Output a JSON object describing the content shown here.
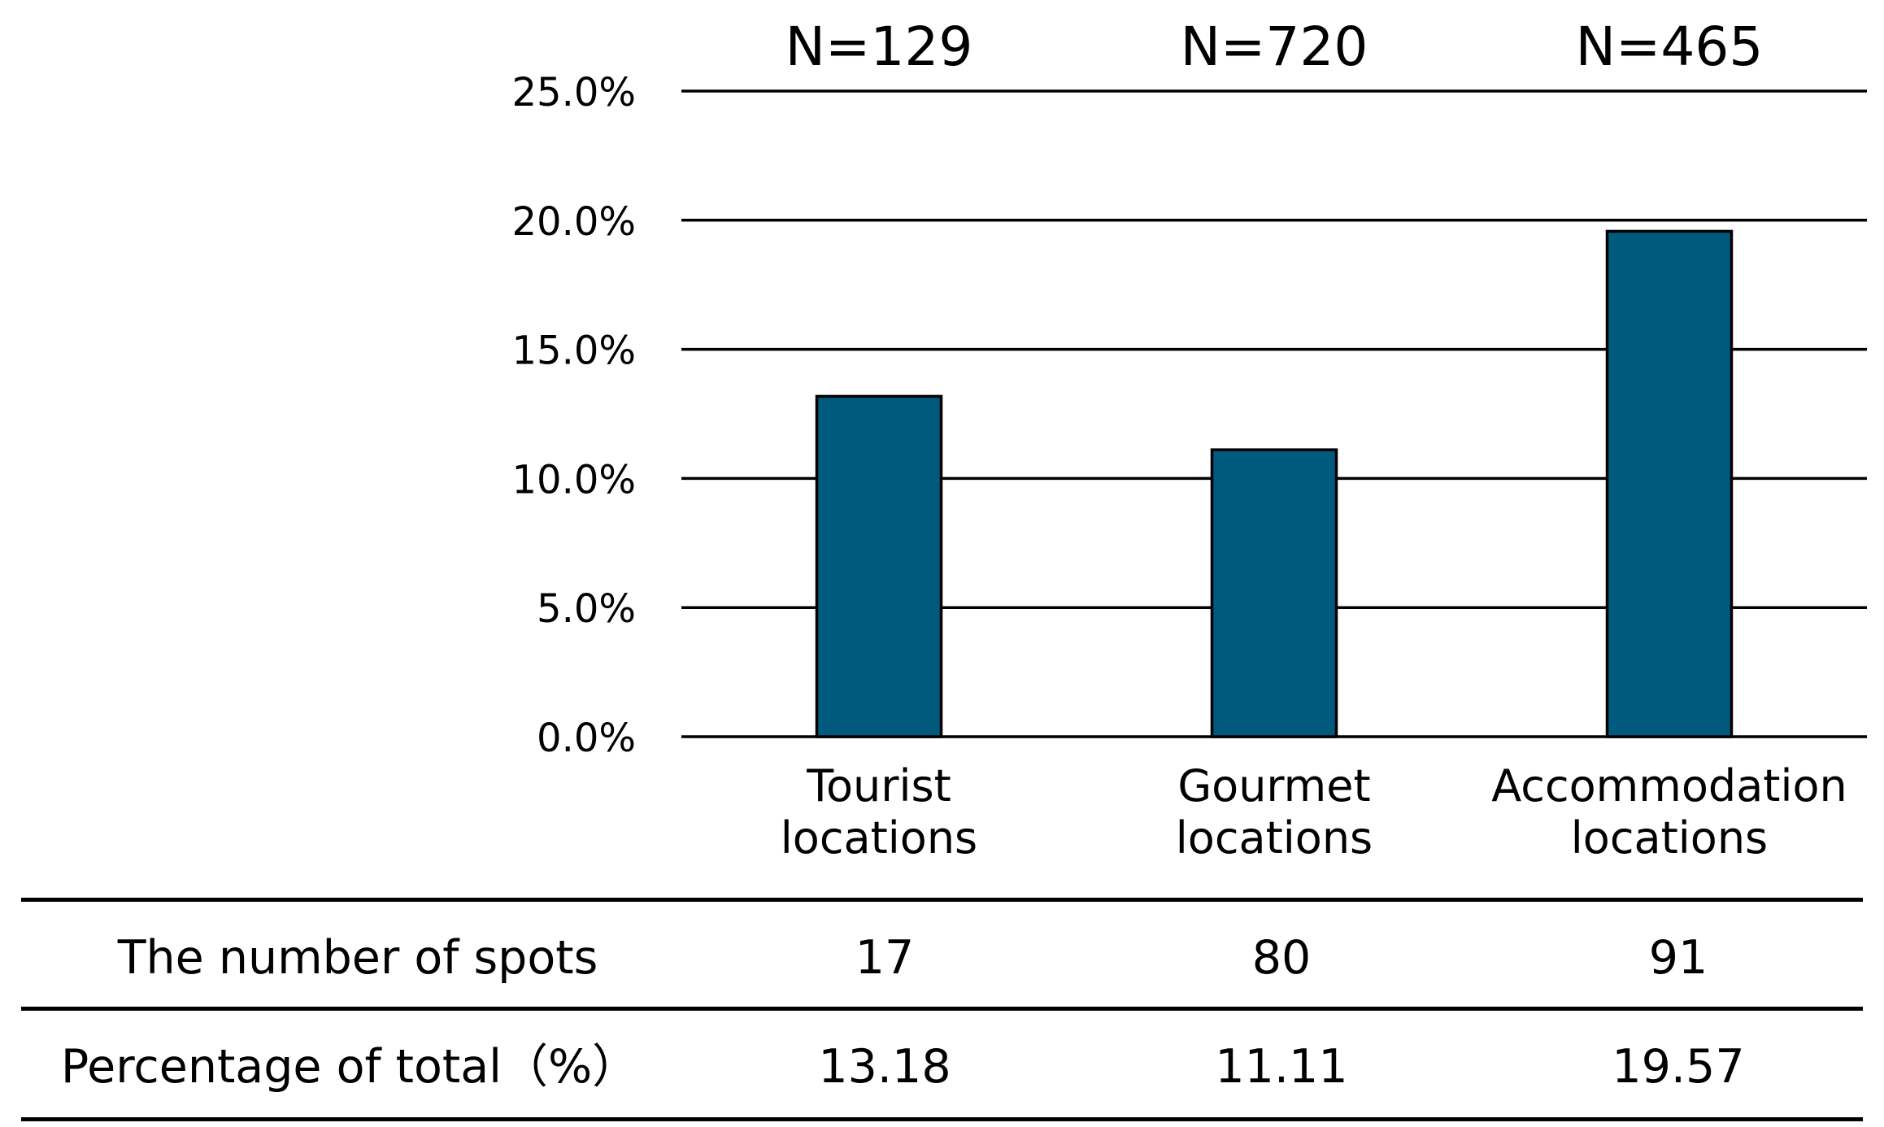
{
  "chart_data": {
    "type": "bar",
    "categories": [
      "Tourist\nlocations",
      "Gourmet\nlocations",
      "Accommodation\nlocations"
    ],
    "values": [
      13.18,
      11.11,
      19.57
    ],
    "sample_sizes": [
      "N=129",
      "N=720",
      "N=465"
    ],
    "title": "",
    "xlabel": "",
    "ylabel": "",
    "ylim": [
      0,
      25
    ],
    "yticks": [
      "0.0%",
      "5.0%",
      "10.0%",
      "15.0%",
      "20.0%",
      "25.0%"
    ],
    "grid": true,
    "bar_color": "#005a7d"
  },
  "table": {
    "rows": [
      {
        "label": "The number of spots",
        "values": [
          "17",
          "80",
          "91"
        ]
      },
      {
        "label": "Percentage of total（%）",
        "values": [
          "13.18",
          "11.11",
          "19.57"
        ]
      }
    ]
  }
}
